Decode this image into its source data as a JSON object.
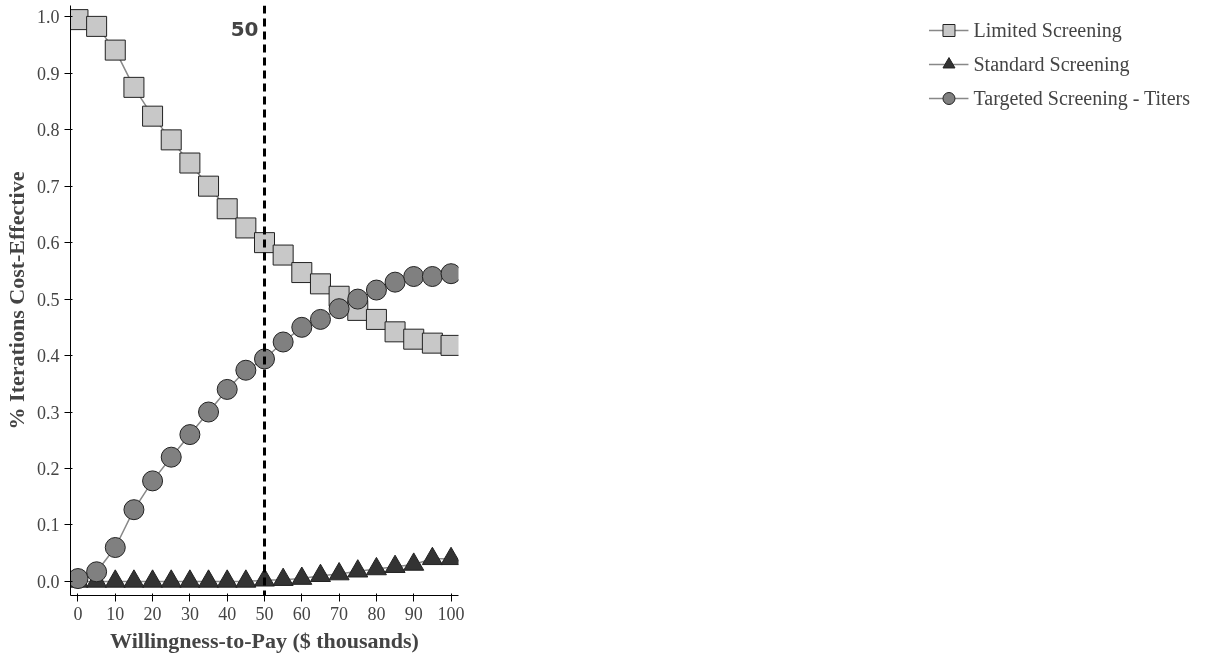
{
  "chart_data": {
    "type": "line",
    "xlabel": "Willingness-to-Pay ($ thousands)",
    "ylabel": "% Iterations Cost-Effective",
    "x": [
      0,
      5,
      10,
      15,
      20,
      25,
      30,
      35,
      40,
      45,
      50,
      55,
      60,
      65,
      70,
      75,
      80,
      85,
      90,
      95,
      100
    ],
    "series": [
      {
        "name": "Limited Screening",
        "color": "#c8c8c8",
        "marker": "square",
        "values": [
          0.995,
          0.983,
          0.941,
          0.875,
          0.824,
          0.782,
          0.741,
          0.7,
          0.66,
          0.626,
          0.6,
          0.578,
          0.547,
          0.527,
          0.505,
          0.48,
          0.464,
          0.442,
          0.429,
          0.422,
          0.418
        ]
      },
      {
        "name": "Standard Screening",
        "color": "#333333",
        "marker": "triangle",
        "values": [
          0.0,
          0.0,
          0.0,
          0.0,
          0.0,
          0.0,
          0.0,
          0.0,
          0.0,
          0.0,
          0.002,
          0.003,
          0.005,
          0.01,
          0.013,
          0.018,
          0.022,
          0.026,
          0.03,
          0.04,
          0.04
        ]
      },
      {
        "name": "Targeted Screening - Titers",
        "color": "#808080",
        "marker": "circle",
        "values": [
          0.005,
          0.017,
          0.06,
          0.127,
          0.178,
          0.22,
          0.26,
          0.3,
          0.34,
          0.374,
          0.394,
          0.424,
          0.45,
          0.464,
          0.483,
          0.5,
          0.516,
          0.53,
          0.54,
          0.54,
          0.545
        ]
      }
    ],
    "xlim": [
      -2,
      102
    ],
    "ylim": [
      -0.025,
      1.02
    ],
    "xticks": [
      0,
      10,
      20,
      30,
      40,
      50,
      60,
      70,
      80,
      90,
      100
    ],
    "yticks": [
      {
        "value": 0,
        "label": "0.0"
      },
      0.1,
      0.2,
      0.3,
      0.4,
      0.5,
      0.6,
      0.7,
      0.8,
      0.9,
      {
        "value": 1,
        "label": "1.0"
      }
    ],
    "ref_lines": [
      {
        "axis": "x",
        "value": 50,
        "label": "50",
        "color": "#000000",
        "line_style": "dashed"
      }
    ],
    "grid": false,
    "legend": "right",
    "line_style": "solid"
  }
}
